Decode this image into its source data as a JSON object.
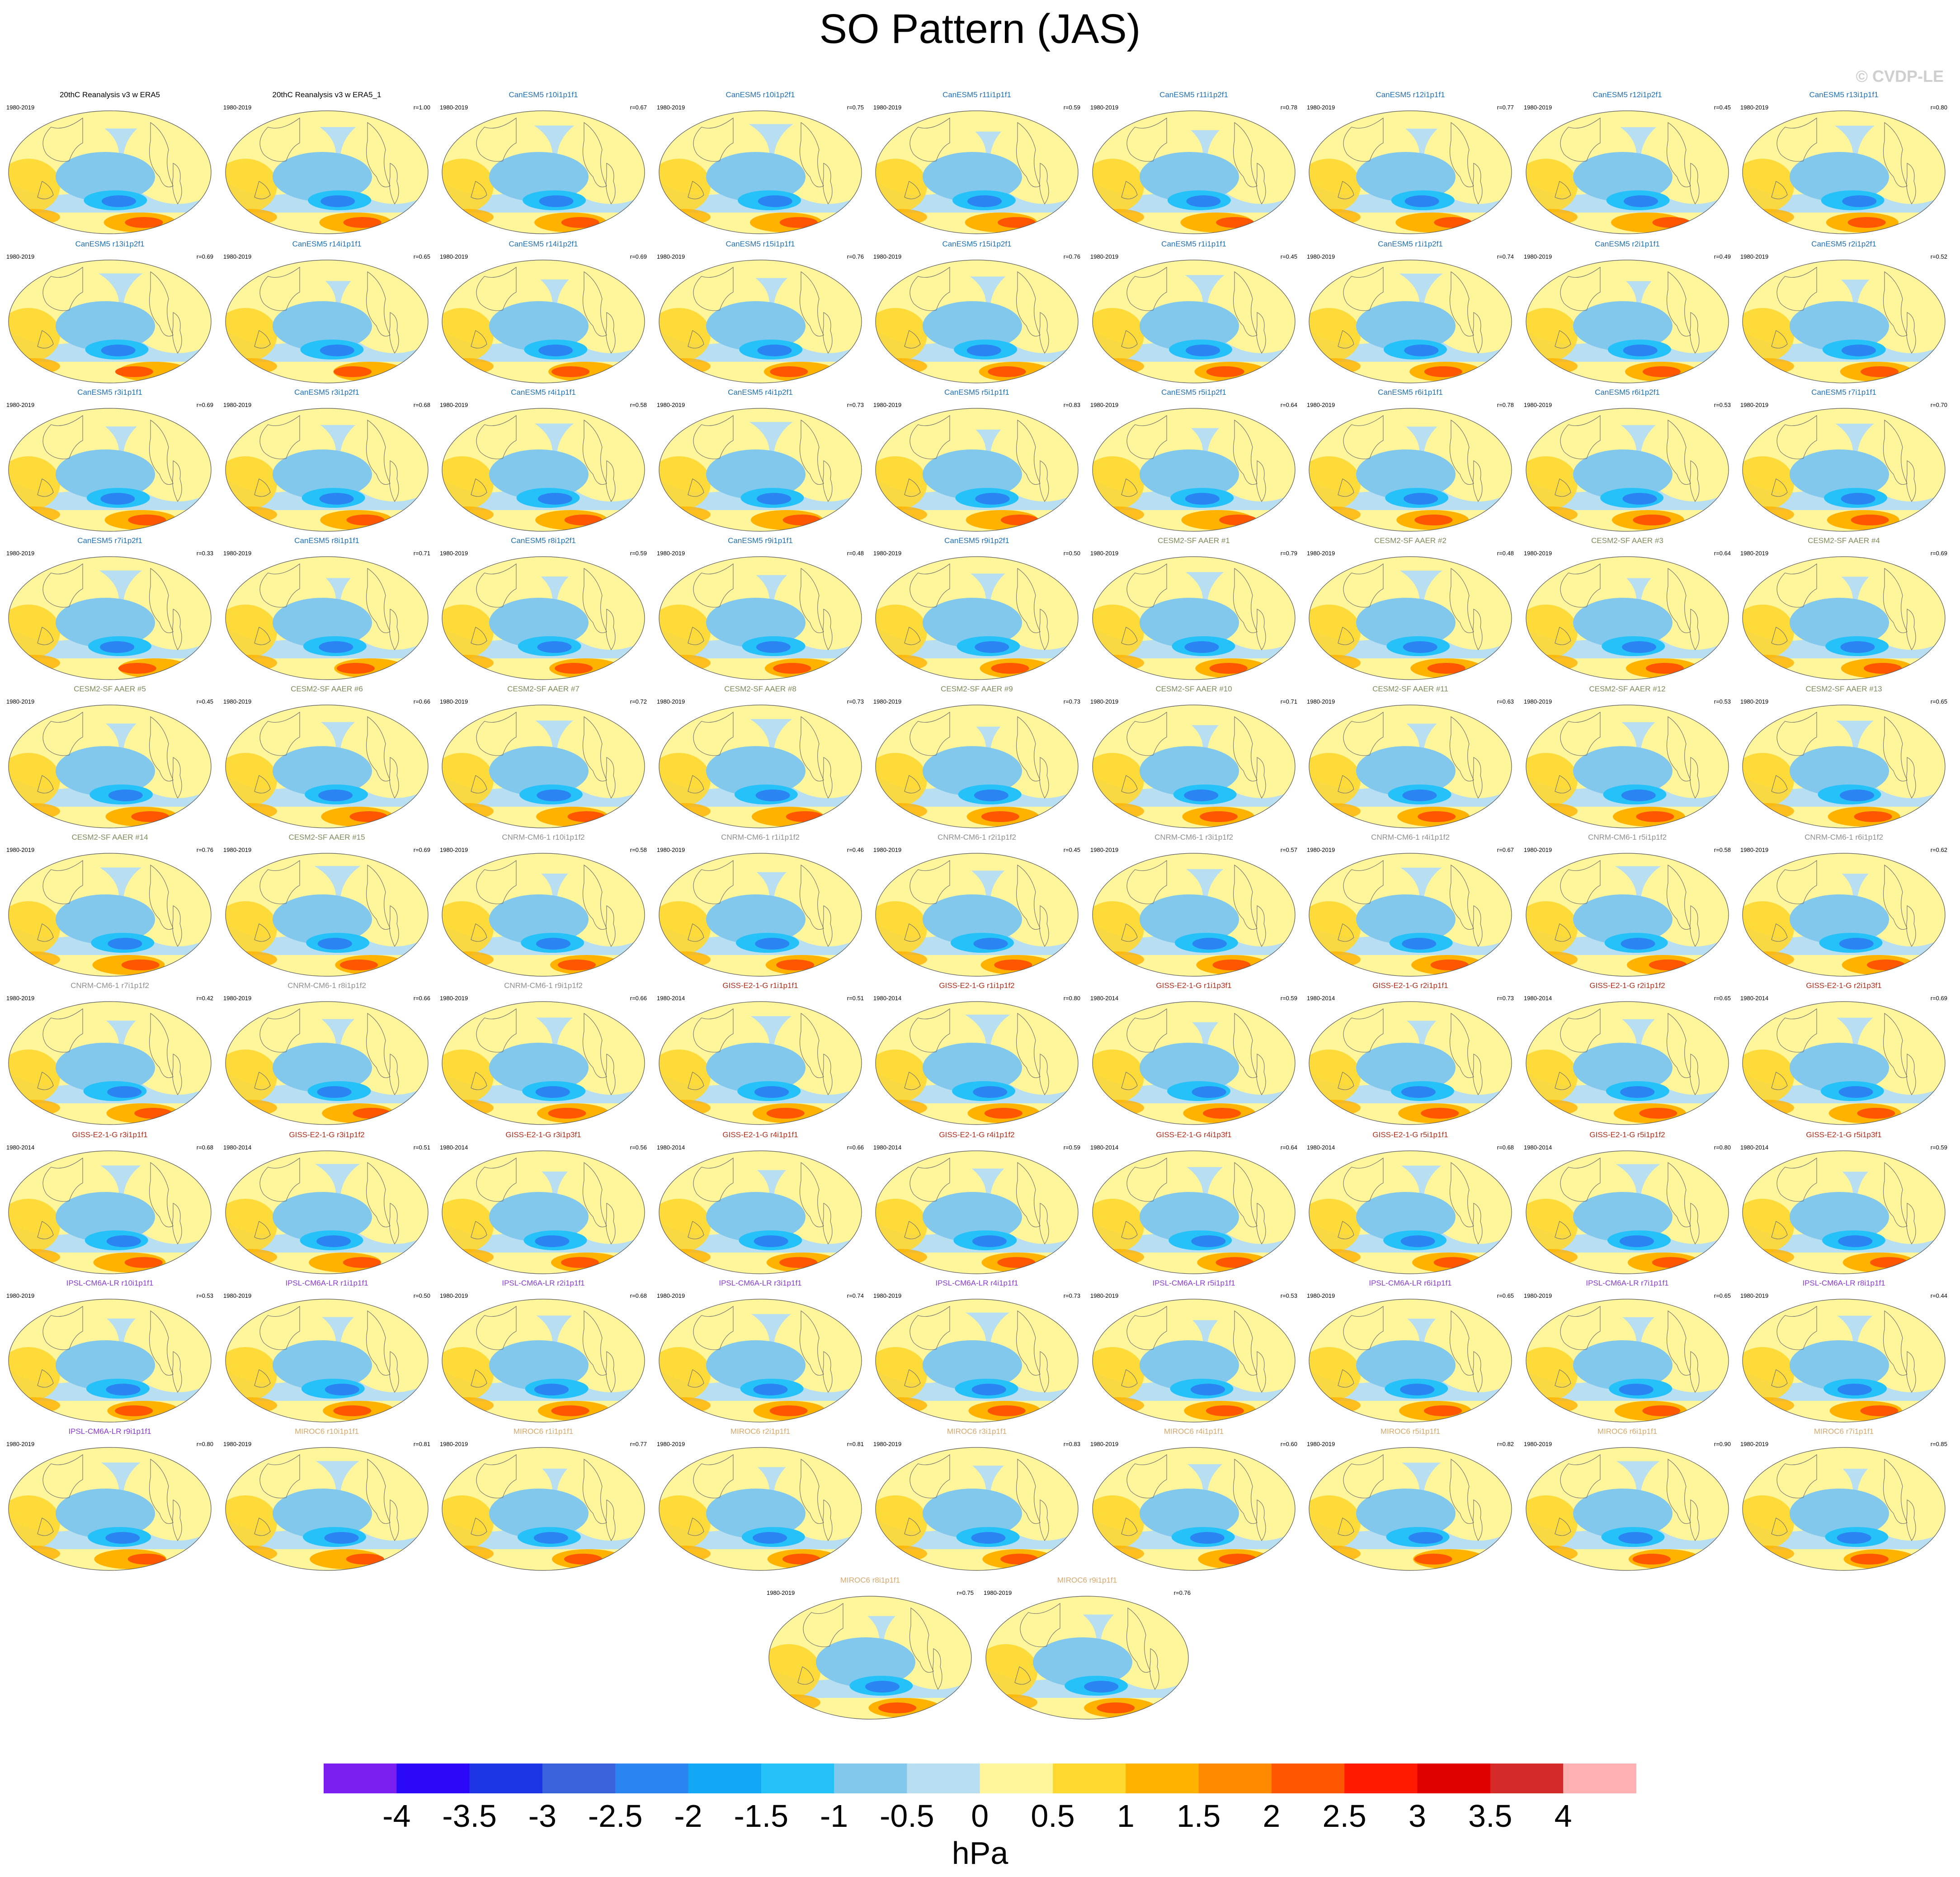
{
  "title": "SO Pattern (JAS)",
  "copyright": "© CVDP-LE",
  "colors": {
    "ocean_base": "#b8def2",
    "land_line": "#6f6f6f",
    "model_title_colors": {
      "obs": "#000000",
      "CanESM5": "#1f6fb5",
      "CESM2-SF AAER": "#7a8c5a",
      "CNRM-CM6-1": "#8e8e8e",
      "GISS-E2-1-G": "#b22c1a",
      "IPSL-CM6A-LR": "#8a3bd4",
      "MIROC6": "#d7a86b"
    }
  },
  "chart_data": {
    "type": "heatmap",
    "variable": "SO Pattern (JAS)",
    "units": "hPa",
    "colorbar": {
      "levels": [
        "-4",
        "-3.5",
        "-3",
        "-2.5",
        "-2",
        "-1.5",
        "-1",
        "-0.5",
        "0",
        "0.5",
        "1",
        "1.5",
        "2",
        "2.5",
        "3",
        "3.5",
        "4"
      ],
      "colors": [
        "#7b1ff0",
        "#2c08f8",
        "#1c36e6",
        "#3a62dc",
        "#2a84f2",
        "#12a8f6",
        "#24c2f8",
        "#82c8ec",
        "#b8def2",
        "#fff59a",
        "#ffd830",
        "#ffb200",
        "#ff8a00",
        "#ff5600",
        "#ff1a00",
        "#e00000",
        "#d42a2a",
        "#ffb0b0"
      ]
    },
    "panels": [
      {
        "model": "obs",
        "title": "20thC Reanalysis v3 w ERA5",
        "years": "1980-2019",
        "r": ""
      },
      {
        "model": "obs",
        "title": "20thC Reanalysis v3 w ERA5_1",
        "years": "1980-2019",
        "r": "r=1.00"
      },
      {
        "model": "CanESM5",
        "title": "CanESM5 r10i1p1f1",
        "years": "1980-2019",
        "r": "r=0.67"
      },
      {
        "model": "CanESM5",
        "title": "CanESM5 r10i1p2f1",
        "years": "1980-2019",
        "r": "r=0.75"
      },
      {
        "model": "CanESM5",
        "title": "CanESM5 r11i1p1f1",
        "years": "1980-2019",
        "r": "r=0.59"
      },
      {
        "model": "CanESM5",
        "title": "CanESM5 r11i1p2f1",
        "years": "1980-2019",
        "r": "r=0.78"
      },
      {
        "model": "CanESM5",
        "title": "CanESM5 r12i1p1f1",
        "years": "1980-2019",
        "r": "r=0.77"
      },
      {
        "model": "CanESM5",
        "title": "CanESM5 r12i1p2f1",
        "years": "1980-2019",
        "r": "r=0.45"
      },
      {
        "model": "CanESM5",
        "title": "CanESM5 r13i1p1f1",
        "years": "1980-2019",
        "r": "r=0.80"
      },
      {
        "model": "CanESM5",
        "title": "CanESM5 r13i1p2f1",
        "years": "1980-2019",
        "r": "r=0.69"
      },
      {
        "model": "CanESM5",
        "title": "CanESM5 r14i1p1f1",
        "years": "1980-2019",
        "r": "r=0.65"
      },
      {
        "model": "CanESM5",
        "title": "CanESM5 r14i1p2f1",
        "years": "1980-2019",
        "r": "r=0.69"
      },
      {
        "model": "CanESM5",
        "title": "CanESM5 r15i1p1f1",
        "years": "1980-2019",
        "r": "r=0.76"
      },
      {
        "model": "CanESM5",
        "title": "CanESM5 r15i1p2f1",
        "years": "1980-2019",
        "r": "r=0.76"
      },
      {
        "model": "CanESM5",
        "title": "CanESM5 r1i1p1f1",
        "years": "1980-2019",
        "r": "r=0.45"
      },
      {
        "model": "CanESM5",
        "title": "CanESM5 r1i1p2f1",
        "years": "1980-2019",
        "r": "r=0.74"
      },
      {
        "model": "CanESM5",
        "title": "CanESM5 r2i1p1f1",
        "years": "1980-2019",
        "r": "r=0.49"
      },
      {
        "model": "CanESM5",
        "title": "CanESM5 r2i1p2f1",
        "years": "1980-2019",
        "r": "r=0.52"
      },
      {
        "model": "CanESM5",
        "title": "CanESM5 r3i1p1f1",
        "years": "1980-2019",
        "r": "r=0.69"
      },
      {
        "model": "CanESM5",
        "title": "CanESM5 r3i1p2f1",
        "years": "1980-2019",
        "r": "r=0.68"
      },
      {
        "model": "CanESM5",
        "title": "CanESM5 r4i1p1f1",
        "years": "1980-2019",
        "r": "r=0.58"
      },
      {
        "model": "CanESM5",
        "title": "CanESM5 r4i1p2f1",
        "years": "1980-2019",
        "r": "r=0.73"
      },
      {
        "model": "CanESM5",
        "title": "CanESM5 r5i1p1f1",
        "years": "1980-2019",
        "r": "r=0.83"
      },
      {
        "model": "CanESM5",
        "title": "CanESM5 r5i1p2f1",
        "years": "1980-2019",
        "r": "r=0.64"
      },
      {
        "model": "CanESM5",
        "title": "CanESM5 r6i1p1f1",
        "years": "1980-2019",
        "r": "r=0.78"
      },
      {
        "model": "CanESM5",
        "title": "CanESM5 r6i1p2f1",
        "years": "1980-2019",
        "r": "r=0.53"
      },
      {
        "model": "CanESM5",
        "title": "CanESM5 r7i1p1f1",
        "years": "1980-2019",
        "r": "r=0.70"
      },
      {
        "model": "CanESM5",
        "title": "CanESM5 r7i1p2f1",
        "years": "1980-2019",
        "r": "r=0.33"
      },
      {
        "model": "CanESM5",
        "title": "CanESM5 r8i1p1f1",
        "years": "1980-2019",
        "r": "r=0.71"
      },
      {
        "model": "CanESM5",
        "title": "CanESM5 r8i1p2f1",
        "years": "1980-2019",
        "r": "r=0.59"
      },
      {
        "model": "CanESM5",
        "title": "CanESM5 r9i1p1f1",
        "years": "1980-2019",
        "r": "r=0.48"
      },
      {
        "model": "CanESM5",
        "title": "CanESM5 r9i1p2f1",
        "years": "1980-2019",
        "r": "r=0.50"
      },
      {
        "model": "CESM2-SF AAER",
        "title": "CESM2-SF AAER #1",
        "years": "1980-2019",
        "r": "r=0.79"
      },
      {
        "model": "CESM2-SF AAER",
        "title": "CESM2-SF AAER #2",
        "years": "1980-2019",
        "r": "r=0.48"
      },
      {
        "model": "CESM2-SF AAER",
        "title": "CESM2-SF AAER #3",
        "years": "1980-2019",
        "r": "r=0.64"
      },
      {
        "model": "CESM2-SF AAER",
        "title": "CESM2-SF AAER #4",
        "years": "1980-2019",
        "r": "r=0.69"
      },
      {
        "model": "CESM2-SF AAER",
        "title": "CESM2-SF AAER #5",
        "years": "1980-2019",
        "r": "r=0.45"
      },
      {
        "model": "CESM2-SF AAER",
        "title": "CESM2-SF AAER #6",
        "years": "1980-2019",
        "r": "r=0.66"
      },
      {
        "model": "CESM2-SF AAER",
        "title": "CESM2-SF AAER #7",
        "years": "1980-2019",
        "r": "r=0.72"
      },
      {
        "model": "CESM2-SF AAER",
        "title": "CESM2-SF AAER #8",
        "years": "1980-2019",
        "r": "r=0.73"
      },
      {
        "model": "CESM2-SF AAER",
        "title": "CESM2-SF AAER #9",
        "years": "1980-2019",
        "r": "r=0.73"
      },
      {
        "model": "CESM2-SF AAER",
        "title": "CESM2-SF AAER #10",
        "years": "1980-2019",
        "r": "r=0.71"
      },
      {
        "model": "CESM2-SF AAER",
        "title": "CESM2-SF AAER #11",
        "years": "1980-2019",
        "r": "r=0.63"
      },
      {
        "model": "CESM2-SF AAER",
        "title": "CESM2-SF AAER #12",
        "years": "1980-2019",
        "r": "r=0.53"
      },
      {
        "model": "CESM2-SF AAER",
        "title": "CESM2-SF AAER #13",
        "years": "1980-2019",
        "r": "r=0.65"
      },
      {
        "model": "CESM2-SF AAER",
        "title": "CESM2-SF AAER #14",
        "years": "1980-2019",
        "r": "r=0.76"
      },
      {
        "model": "CESM2-SF AAER",
        "title": "CESM2-SF AAER #15",
        "years": "1980-2019",
        "r": "r=0.69"
      },
      {
        "model": "CNRM-CM6-1",
        "title": "CNRM-CM6-1 r10i1p1f2",
        "years": "1980-2019",
        "r": "r=0.58"
      },
      {
        "model": "CNRM-CM6-1",
        "title": "CNRM-CM6-1 r1i1p1f2",
        "years": "1980-2019",
        "r": "r=0.46"
      },
      {
        "model": "CNRM-CM6-1",
        "title": "CNRM-CM6-1 r2i1p1f2",
        "years": "1980-2019",
        "r": "r=0.45"
      },
      {
        "model": "CNRM-CM6-1",
        "title": "CNRM-CM6-1 r3i1p1f2",
        "years": "1980-2019",
        "r": "r=0.57"
      },
      {
        "model": "CNRM-CM6-1",
        "title": "CNRM-CM6-1 r4i1p1f2",
        "years": "1980-2019",
        "r": "r=0.67"
      },
      {
        "model": "CNRM-CM6-1",
        "title": "CNRM-CM6-1 r5i1p1f2",
        "years": "1980-2019",
        "r": "r=0.58"
      },
      {
        "model": "CNRM-CM6-1",
        "title": "CNRM-CM6-1 r6i1p1f2",
        "years": "1980-2019",
        "r": "r=0.62"
      },
      {
        "model": "CNRM-CM6-1",
        "title": "CNRM-CM6-1 r7i1p1f2",
        "years": "1980-2019",
        "r": "r=0.42"
      },
      {
        "model": "CNRM-CM6-1",
        "title": "CNRM-CM6-1 r8i1p1f2",
        "years": "1980-2019",
        "r": "r=0.66"
      },
      {
        "model": "CNRM-CM6-1",
        "title": "CNRM-CM6-1 r9i1p1f2",
        "years": "1980-2019",
        "r": "r=0.66"
      },
      {
        "model": "GISS-E2-1-G",
        "title": "GISS-E2-1-G r1i1p1f1",
        "years": "1980-2014",
        "r": "r=0.51"
      },
      {
        "model": "GISS-E2-1-G",
        "title": "GISS-E2-1-G r1i1p1f2",
        "years": "1980-2014",
        "r": "r=0.80"
      },
      {
        "model": "GISS-E2-1-G",
        "title": "GISS-E2-1-G r1i1p3f1",
        "years": "1980-2014",
        "r": "r=0.59"
      },
      {
        "model": "GISS-E2-1-G",
        "title": "GISS-E2-1-G r2i1p1f1",
        "years": "1980-2014",
        "r": "r=0.73"
      },
      {
        "model": "GISS-E2-1-G",
        "title": "GISS-E2-1-G r2i1p1f2",
        "years": "1980-2014",
        "r": "r=0.65"
      },
      {
        "model": "GISS-E2-1-G",
        "title": "GISS-E2-1-G r2i1p3f1",
        "years": "1980-2014",
        "r": "r=0.69"
      },
      {
        "model": "GISS-E2-1-G",
        "title": "GISS-E2-1-G r3i1p1f1",
        "years": "1980-2014",
        "r": "r=0.68"
      },
      {
        "model": "GISS-E2-1-G",
        "title": "GISS-E2-1-G r3i1p1f2",
        "years": "1980-2014",
        "r": "r=0.51"
      },
      {
        "model": "GISS-E2-1-G",
        "title": "GISS-E2-1-G r3i1p3f1",
        "years": "1980-2014",
        "r": "r=0.56"
      },
      {
        "model": "GISS-E2-1-G",
        "title": "GISS-E2-1-G r4i1p1f1",
        "years": "1980-2014",
        "r": "r=0.66"
      },
      {
        "model": "GISS-E2-1-G",
        "title": "GISS-E2-1-G r4i1p1f2",
        "years": "1980-2014",
        "r": "r=0.59"
      },
      {
        "model": "GISS-E2-1-G",
        "title": "GISS-E2-1-G r4i1p3f1",
        "years": "1980-2014",
        "r": "r=0.64"
      },
      {
        "model": "GISS-E2-1-G",
        "title": "GISS-E2-1-G r5i1p1f1",
        "years": "1980-2014",
        "r": "r=0.68"
      },
      {
        "model": "GISS-E2-1-G",
        "title": "GISS-E2-1-G r5i1p1f2",
        "years": "1980-2014",
        "r": "r=0.80"
      },
      {
        "model": "GISS-E2-1-G",
        "title": "GISS-E2-1-G r5i1p3f1",
        "years": "1980-2014",
        "r": "r=0.59"
      },
      {
        "model": "IPSL-CM6A-LR",
        "title": "IPSL-CM6A-LR r10i1p1f1",
        "years": "1980-2019",
        "r": "r=0.53"
      },
      {
        "model": "IPSL-CM6A-LR",
        "title": "IPSL-CM6A-LR r1i1p1f1",
        "years": "1980-2019",
        "r": "r=0.50"
      },
      {
        "model": "IPSL-CM6A-LR",
        "title": "IPSL-CM6A-LR r2i1p1f1",
        "years": "1980-2019",
        "r": "r=0.68"
      },
      {
        "model": "IPSL-CM6A-LR",
        "title": "IPSL-CM6A-LR r3i1p1f1",
        "years": "1980-2019",
        "r": "r=0.74"
      },
      {
        "model": "IPSL-CM6A-LR",
        "title": "IPSL-CM6A-LR r4i1p1f1",
        "years": "1980-2019",
        "r": "r=0.73"
      },
      {
        "model": "IPSL-CM6A-LR",
        "title": "IPSL-CM6A-LR r5i1p1f1",
        "years": "1980-2019",
        "r": "r=0.53"
      },
      {
        "model": "IPSL-CM6A-LR",
        "title": "IPSL-CM6A-LR r6i1p1f1",
        "years": "1980-2019",
        "r": "r=0.65"
      },
      {
        "model": "IPSL-CM6A-LR",
        "title": "IPSL-CM6A-LR r7i1p1f1",
        "years": "1980-2019",
        "r": "r=0.65"
      },
      {
        "model": "IPSL-CM6A-LR",
        "title": "IPSL-CM6A-LR r8i1p1f1",
        "years": "1980-2019",
        "r": "r=0.44"
      },
      {
        "model": "IPSL-CM6A-LR",
        "title": "IPSL-CM6A-LR r9i1p1f1",
        "years": "1980-2019",
        "r": "r=0.80"
      },
      {
        "model": "MIROC6",
        "title": "MIROC6 r10i1p1f1",
        "years": "1980-2019",
        "r": "r=0.81"
      },
      {
        "model": "MIROC6",
        "title": "MIROC6 r1i1p1f1",
        "years": "1980-2019",
        "r": "r=0.77"
      },
      {
        "model": "MIROC6",
        "title": "MIROC6 r2i1p1f1",
        "years": "1980-2019",
        "r": "r=0.81"
      },
      {
        "model": "MIROC6",
        "title": "MIROC6 r3i1p1f1",
        "years": "1980-2019",
        "r": "r=0.83"
      },
      {
        "model": "MIROC6",
        "title": "MIROC6 r4i1p1f1",
        "years": "1980-2019",
        "r": "r=0.60"
      },
      {
        "model": "MIROC6",
        "title": "MIROC6 r5i1p1f1",
        "years": "1980-2019",
        "r": "r=0.82"
      },
      {
        "model": "MIROC6",
        "title": "MIROC6 r6i1p1f1",
        "years": "1980-2019",
        "r": "r=0.90"
      },
      {
        "model": "MIROC6",
        "title": "MIROC6 r7i1p1f1",
        "years": "1980-2019",
        "r": "r=0.85"
      },
      {
        "model": "MIROC6",
        "title": "MIROC6 r8i1p1f1",
        "years": "1980-2019",
        "r": "r=0.75"
      },
      {
        "model": "MIROC6",
        "title": "MIROC6 r9i1p1f1",
        "years": "1980-2019",
        "r": "r=0.76"
      }
    ]
  }
}
